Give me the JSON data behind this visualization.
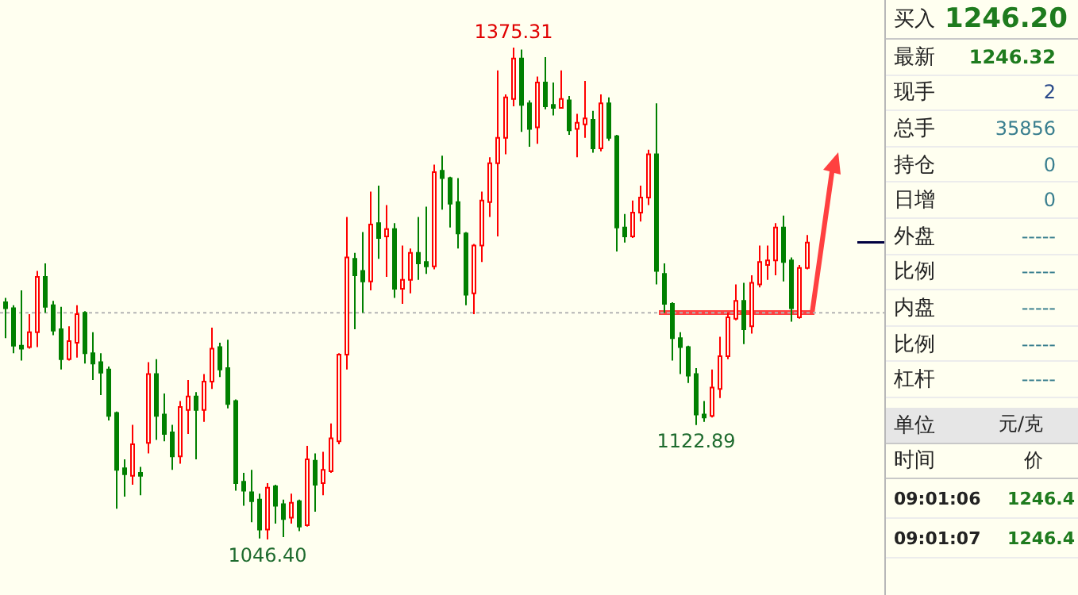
{
  "chart_data": [
    {
      "type": "candlestick",
      "categories": [
        null,
        null,
        null,
        null,
        null,
        null,
        null,
        null,
        null,
        null,
        null,
        null,
        null,
        null,
        null,
        null,
        null,
        null,
        null,
        null,
        null,
        null,
        null,
        null,
        null,
        null,
        null,
        null,
        null,
        null,
        null,
        null,
        null,
        null,
        null,
        null,
        null,
        null,
        null,
        null,
        null,
        null,
        null,
        null,
        null,
        null,
        null,
        null,
        null,
        null,
        null,
        null,
        null,
        null,
        null,
        null,
        null,
        null,
        null,
        null,
        null,
        null,
        null,
        null,
        null,
        null,
        null,
        null,
        null,
        null,
        null,
        null,
        null,
        null,
        null,
        null,
        null,
        null,
        null,
        null,
        null,
        null,
        null,
        null,
        null,
        null,
        null,
        null,
        null,
        null,
        null,
        null,
        null,
        null,
        null,
        null,
        null,
        null,
        null,
        null,
        null,
        null
      ],
      "ohlc": [
        [
          1205,
          1208,
          1181,
          1201
        ],
        [
          1201,
          1203,
          1171,
          1176
        ],
        [
          1176,
          1213,
          1166,
          1174
        ],
        [
          1175,
          1197,
          1174,
          1185
        ],
        [
          1185,
          1226,
          1175,
          1222
        ],
        [
          1222,
          1231,
          1198,
          1202
        ],
        [
          1203,
          1206,
          1183,
          1186
        ],
        [
          1187,
          1202,
          1160,
          1167
        ],
        [
          1167,
          1189,
          1166,
          1179
        ],
        [
          1178,
          1203,
          1168,
          1197
        ],
        [
          1198,
          1199,
          1164,
          1171
        ],
        [
          1171,
          1185,
          1153,
          1164
        ],
        [
          1165,
          1171,
          1143,
          1158
        ],
        [
          1160,
          1162,
          1126,
          1129
        ],
        [
          1131,
          1132,
          1067,
          1093
        ],
        [
          1094,
          1100,
          1075,
          1090
        ],
        [
          1089,
          1123,
          1083,
          1110
        ],
        [
          1091,
          1095,
          1076,
          1089
        ],
        [
          1111,
          1165,
          1104,
          1157
        ],
        [
          1157,
          1167,
          1113,
          1129
        ],
        [
          1130,
          1144,
          1112,
          1117
        ],
        [
          1118,
          1123,
          1093,
          1102
        ],
        [
          1102,
          1139,
          1097,
          1135
        ],
        [
          1133,
          1153,
          1117,
          1142
        ],
        [
          1142,
          1145,
          1100,
          1133
        ],
        [
          1133,
          1157,
          1125,
          1152
        ],
        [
          1152,
          1188,
          1147,
          1174
        ],
        [
          1175,
          1178,
          1155,
          1160
        ],
        [
          1161,
          1180,
          1134,
          1137
        ],
        [
          1139,
          1140,
          1079,
          1084
        ],
        [
          1085,
          1091,
          1069,
          1079
        ],
        [
          1078,
          1093,
          1058,
          1072
        ],
        [
          1073,
          1077,
          1047,
          1053
        ],
        [
          1053,
          1084,
          1046.4,
          1081
        ],
        [
          1082,
          1083,
          1057,
          1069
        ],
        [
          1070,
          1073,
          1048,
          1060
        ],
        [
          1061,
          1077,
          1057,
          1071
        ],
        [
          1072,
          1073,
          1052,
          1055
        ],
        [
          1056,
          1109,
          1055,
          1100
        ],
        [
          1099,
          1104,
          1065,
          1083
        ],
        [
          1084,
          1105,
          1076,
          1093
        ],
        [
          1092,
          1124,
          1091,
          1114
        ],
        [
          1112,
          1171,
          1110,
          1170
        ],
        [
          1170,
          1262,
          1160,
          1235
        ],
        [
          1234,
          1238,
          1187,
          1223
        ],
        [
          1226,
          1252,
          1198,
          1219
        ],
        [
          1219,
          1279,
          1213,
          1257
        ],
        [
          1258,
          1283,
          1234,
          1248
        ],
        [
          1249,
          1270,
          1222,
          1254
        ],
        [
          1254,
          1258,
          1208,
          1214
        ],
        [
          1214,
          1243,
          1204,
          1220
        ],
        [
          1220,
          1241,
          1211,
          1238
        ],
        [
          1238,
          1262,
          1220,
          1231
        ],
        [
          1232,
          1269,
          1224,
          1229
        ],
        [
          1229,
          1297,
          1227,
          1292
        ],
        [
          1293,
          1303,
          1267,
          1288
        ],
        [
          1288,
          1289,
          1255,
          1271
        ],
        [
          1272,
          1288,
          1241,
          1251
        ],
        [
          1251,
          1252,
          1203,
          1210
        ],
        [
          1211,
          1244,
          1197,
          1243
        ],
        [
          1243,
          1279,
          1232,
          1273
        ],
        [
          1272,
          1302,
          1262,
          1298
        ],
        [
          1298,
          1360,
          1249,
          1315
        ],
        [
          1315,
          1344,
          1304,
          1342
        ],
        [
          1341,
          1375.31,
          1336,
          1368
        ],
        [
          1368,
          1374,
          1319,
          1337
        ],
        [
          1338,
          1340,
          1309,
          1321
        ],
        [
          1322,
          1356,
          1311,
          1352
        ],
        [
          1352,
          1369,
          1334,
          1336
        ],
        [
          1337,
          1352,
          1330,
          1335
        ],
        [
          1335,
          1360,
          1335,
          1341
        ],
        [
          1340,
          1343,
          1317,
          1320
        ],
        [
          1321,
          1331,
          1302,
          1325
        ],
        [
          1324,
          1353,
          1315,
          1328
        ],
        [
          1327,
          1333,
          1305,
          1308
        ],
        [
          1308,
          1344,
          1306,
          1338
        ],
        [
          1338,
          1342,
          1313,
          1315
        ],
        [
          1316,
          1317,
          1239,
          1255
        ],
        [
          1255,
          1264,
          1245,
          1249
        ],
        [
          1249,
          1273,
          1248,
          1265
        ],
        [
          1265,
          1283,
          1259,
          1275
        ],
        [
          1275,
          1307,
          1270,
          1304
        ],
        [
          1304,
          1338,
          1217,
          1226
        ],
        [
          1224,
          1231,
          1198,
          1204
        ],
        [
          1204,
          1205,
          1166,
          1181
        ],
        [
          1181,
          1185,
          1157,
          1175
        ],
        [
          1175,
          1176,
          1151,
          1156
        ],
        [
          1157,
          1161,
          1122.89,
          1130
        ],
        [
          1130,
          1139,
          1125,
          1128
        ],
        [
          1129,
          1160,
          1128,
          1148
        ],
        [
          1147,
          1182,
          1141,
          1169
        ],
        [
          1169,
          1198,
          1167,
          1195
        ],
        [
          1194,
          1217,
          1193,
          1206
        ],
        [
          1206,
          1218,
          1177,
          1187
        ],
        [
          1189,
          1223,
          1184,
          1218
        ],
        [
          1217,
          1243,
          1215,
          1232
        ],
        [
          1230,
          1243,
          1220,
          1233
        ],
        [
          1233,
          1258,
          1223,
          1255
        ],
        [
          1255,
          1263,
          1219,
          1232
        ],
        [
          1233,
          1235,
          1192,
          1201
        ],
        [
          1195,
          1230,
          1194,
          1228
        ],
        [
          1228,
          1250,
          1227,
          1245
        ]
      ],
      "annotations": [
        {
          "text": "1375.31",
          "y": 1375.31
        },
        {
          "text": "1122.89",
          "y": 1122.89
        },
        {
          "text": "1046.40",
          "y": 1046.4
        }
      ],
      "ref_lines": [
        {
          "axis": "y",
          "value": 1198,
          "color": "#b4b4b4",
          "line_style": "dotted"
        }
      ]
    },
    {
      "type": "other",
      "annotations": [
        "买入",
        "1246.20",
        "最新",
        "1246.32",
        "现手",
        "2",
        "总手",
        "35856",
        "持仓",
        "0",
        "日增",
        "0",
        "外盘",
        "-----",
        "比例",
        "-----",
        "内盘",
        "-----",
        "比例",
        "-----",
        "杠杆",
        "-----",
        "单位",
        "元/克",
        "时间",
        "价",
        "09:01:06",
        "1246.4",
        "09:01:07",
        "1246.4"
      ]
    }
  ]
}
